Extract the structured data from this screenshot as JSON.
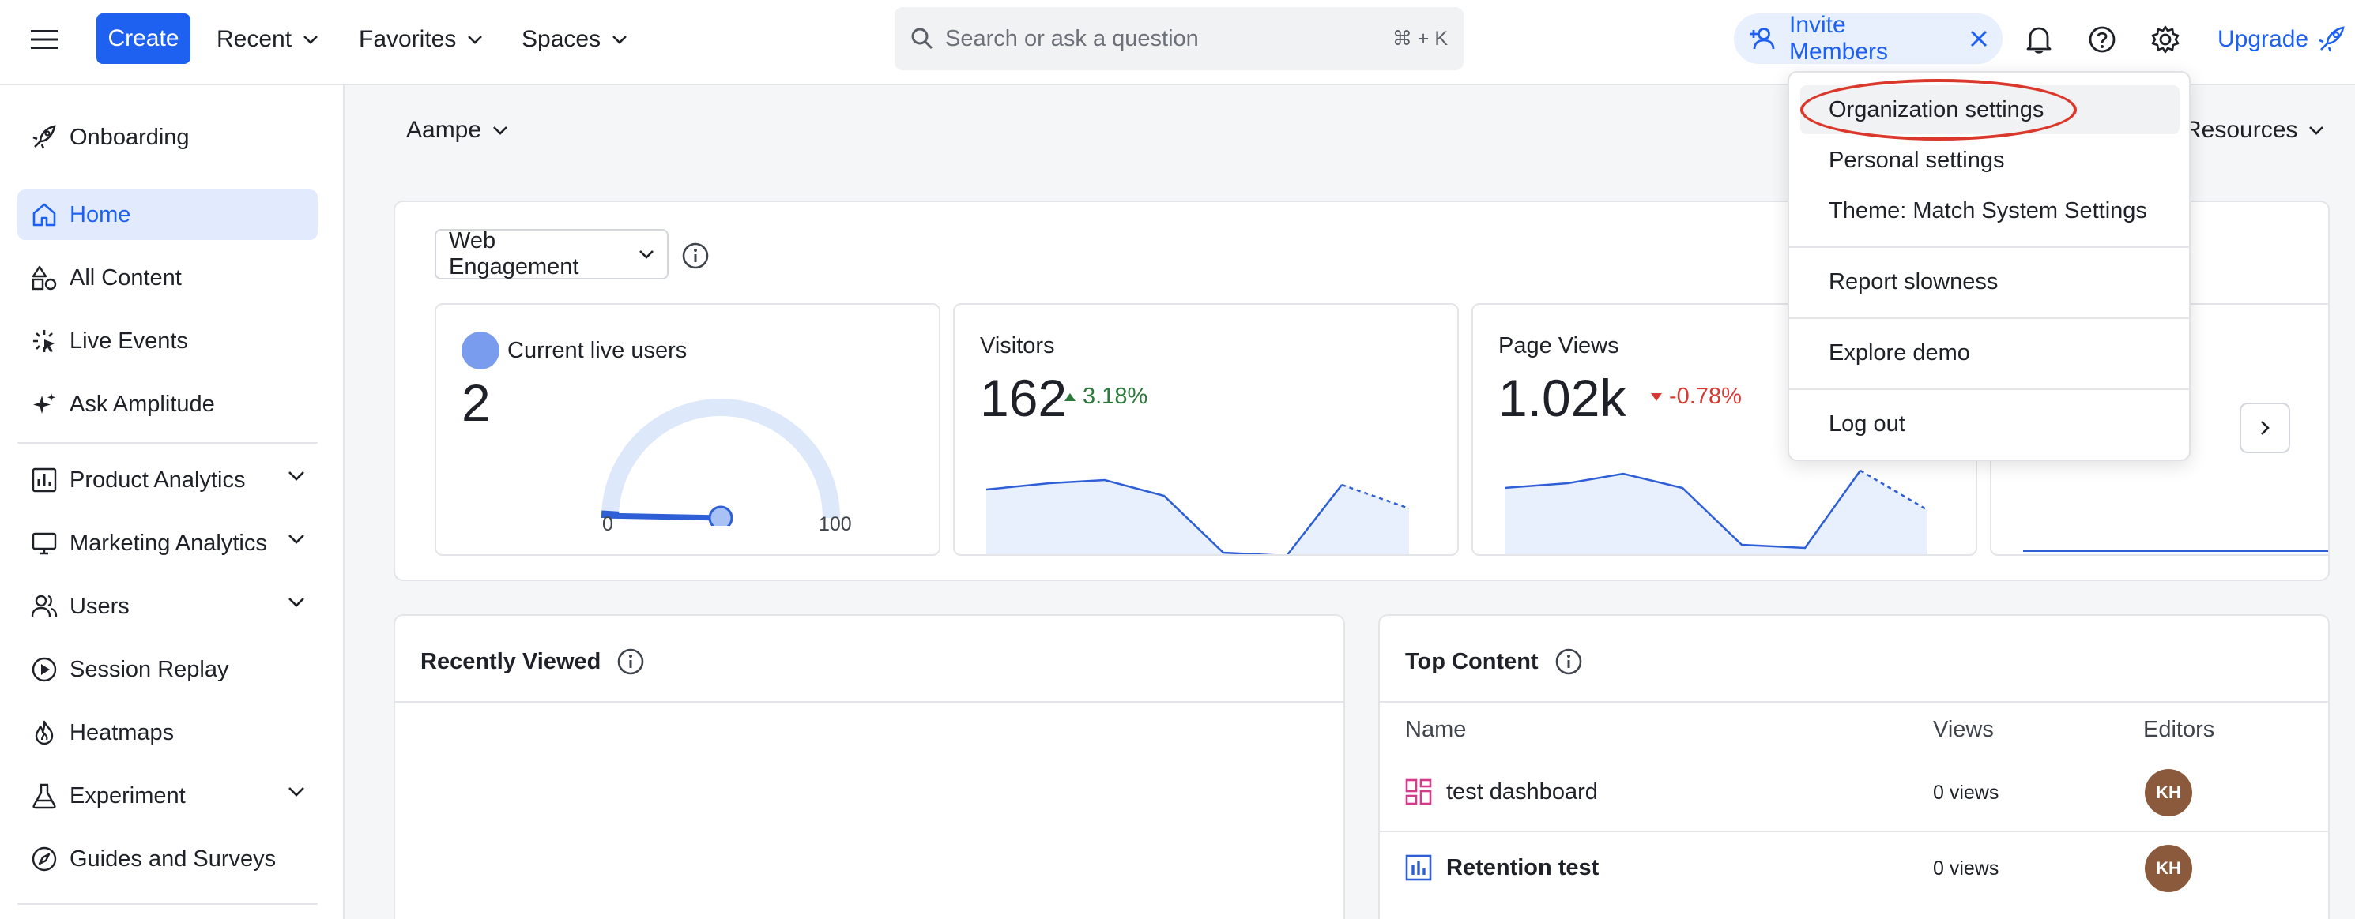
{
  "topbar": {
    "create_label": "Create",
    "nav": [
      {
        "label": "Recent"
      },
      {
        "label": "Favorites"
      },
      {
        "label": "Spaces"
      }
    ],
    "search_placeholder": "Search or ask a question",
    "search_shortcut": "⌘ + K",
    "invite_label": "Invite Members",
    "upgrade_label": "Upgrade"
  },
  "sidebar": {
    "items": [
      {
        "label": "Onboarding",
        "icon": "rocket-icon"
      },
      {
        "label": "Home",
        "icon": "home-icon",
        "active": true
      },
      {
        "label": "All Content",
        "icon": "shapes-icon"
      },
      {
        "label": "Live Events",
        "icon": "live-icon"
      },
      {
        "label": "Ask Amplitude",
        "icon": "sparkle-icon"
      },
      {
        "label": "Product Analytics",
        "icon": "bar-chart-icon",
        "expandable": true
      },
      {
        "label": "Marketing Analytics",
        "icon": "monitor-icon",
        "expandable": true
      },
      {
        "label": "Users",
        "icon": "users-icon",
        "expandable": true
      },
      {
        "label": "Session Replay",
        "icon": "play-circle-icon"
      },
      {
        "label": "Heatmaps",
        "icon": "flame-icon"
      },
      {
        "label": "Experiment",
        "icon": "flask-icon",
        "expandable": true
      },
      {
        "label": "Guides and Surveys",
        "icon": "compass-icon"
      }
    ]
  },
  "main": {
    "workspace": "Aampe",
    "resources_label": "Resources",
    "engagement": {
      "dropdown_label": "Web Engagement",
      "live": {
        "label": "Current live users",
        "value": "2",
        "gauge_min": "0",
        "gauge_max": "100",
        "gauge_fraction": 0.02
      },
      "visitors": {
        "label": "Visitors",
        "value": "162",
        "change": "3.18%",
        "direction": "up"
      },
      "pageviews": {
        "label": "Page Views",
        "value": "1.02k",
        "change": "-0.78%",
        "direction": "down"
      }
    },
    "recently_viewed": {
      "title": "Recently Viewed"
    },
    "top_content": {
      "title": "Top Content",
      "columns": [
        "Name",
        "Views",
        "Editors"
      ],
      "rows": [
        {
          "name": "test dashboard",
          "views": "0 views",
          "editor": "KH",
          "icon": "dashboard-icon"
        },
        {
          "name": "Retention test",
          "views": "0 views",
          "editor": "KH",
          "icon": "chart-icon"
        }
      ]
    }
  },
  "settings_menu": {
    "items": [
      {
        "label": "Organization settings"
      },
      {
        "label": "Personal settings"
      },
      {
        "label": "Theme: Match System Settings"
      },
      {
        "label": "Report slowness"
      },
      {
        "label": "Explore demo"
      },
      {
        "label": "Log out"
      }
    ]
  },
  "colors": {
    "accent": "#1e61f0",
    "positive": "#2b7a3b",
    "negative": "#d63a35",
    "annotation": "#d9382b"
  }
}
